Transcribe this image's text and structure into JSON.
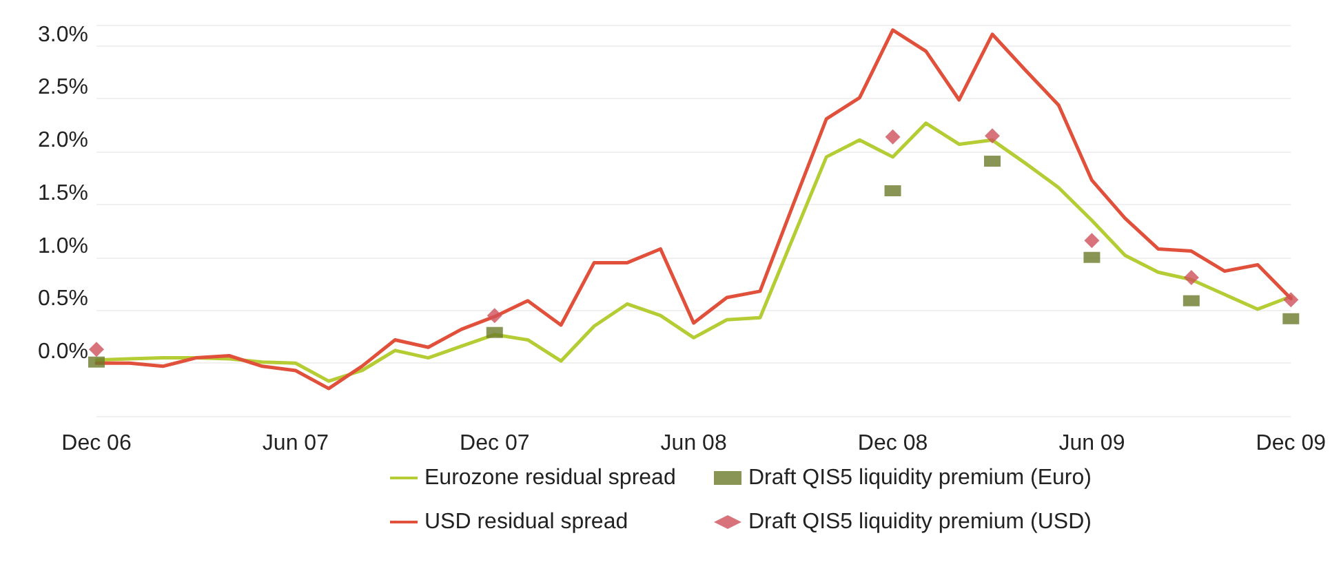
{
  "chart_data": {
    "type": "line",
    "categories": [
      "Dec 06",
      null,
      null,
      null,
      null,
      null,
      "Jun 07",
      null,
      null,
      null,
      null,
      null,
      "Dec 07",
      null,
      null,
      null,
      null,
      null,
      "Jun 08",
      null,
      null,
      null,
      null,
      null,
      "Dec 08",
      null,
      null,
      null,
      null,
      null,
      "Jun 09",
      null,
      null,
      null,
      null,
      null,
      "Dec 09"
    ],
    "series": [
      {
        "name": "Eurozone residual spread",
        "marker": "none",
        "color": "#b5cc34",
        "values": [
          0.03,
          0.04,
          0.05,
          0.05,
          0.04,
          0.01,
          0.0,
          -0.17,
          -0.07,
          0.12,
          0.05,
          0.16,
          0.27,
          0.22,
          0.02,
          0.35,
          0.56,
          0.45,
          0.24,
          0.41,
          0.43,
          1.19,
          1.95,
          2.11,
          1.95,
          2.27,
          2.07,
          2.11,
          1.89,
          1.66,
          1.35,
          1.02,
          0.86,
          0.79,
          0.65,
          0.51,
          0.63
        ]
      },
      {
        "name": "Draft QIS5 liquidity premium (Euro)",
        "type": "scatter",
        "marker": "square",
        "color": "#6b7a2a",
        "values": [
          0.01,
          null,
          null,
          null,
          null,
          null,
          null,
          null,
          null,
          null,
          null,
          null,
          0.29,
          null,
          null,
          null,
          null,
          null,
          null,
          null,
          null,
          null,
          null,
          null,
          1.63,
          null,
          null,
          1.91,
          null,
          null,
          1.0,
          null,
          null,
          0.59,
          null,
          null,
          0.42
        ]
      },
      {
        "name": "USD residual spread",
        "marker": "none",
        "color": "#e0503a",
        "values": [
          0.0,
          0.0,
          -0.03,
          0.05,
          0.07,
          -0.03,
          -0.07,
          -0.24,
          -0.03,
          0.22,
          0.15,
          0.32,
          0.44,
          0.59,
          0.36,
          0.95,
          0.95,
          1.08,
          0.38,
          0.62,
          0.68,
          1.5,
          2.31,
          2.51,
          3.15,
          2.95,
          2.49,
          3.11,
          2.77,
          2.44,
          1.73,
          1.37,
          1.08,
          1.06,
          0.87,
          0.93,
          0.61
        ]
      },
      {
        "name": "Draft QIS5 liquidity premium (USD)",
        "type": "scatter",
        "marker": "diamond",
        "color": "#d0505a",
        "values": [
          0.13,
          null,
          null,
          null,
          null,
          null,
          null,
          null,
          null,
          null,
          null,
          null,
          0.45,
          null,
          null,
          null,
          null,
          null,
          null,
          null,
          null,
          null,
          null,
          null,
          2.14,
          null,
          null,
          2.15,
          null,
          null,
          1.16,
          null,
          null,
          0.81,
          null,
          null,
          0.6
        ]
      }
    ],
    "ylim": [
      -0.5,
      3.2
    ],
    "yticks": [
      {
        "value": -0.5,
        "label": null
      },
      {
        "value": 0,
        "label": "0.0%"
      },
      {
        "value": 0.5,
        "label": "0.5%"
      },
      {
        "value": 1,
        "label": "1.0%"
      },
      {
        "value": 1.5,
        "label": "1.5%"
      },
      {
        "value": 2,
        "label": "2.0%"
      },
      {
        "value": 2.5,
        "label": "2.5%"
      },
      {
        "value": 3,
        "label": "3.0%"
      },
      {
        "value": 3.2,
        "label": null
      }
    ],
    "grid": "y",
    "legend": "bottom",
    "line_style": "solid"
  }
}
